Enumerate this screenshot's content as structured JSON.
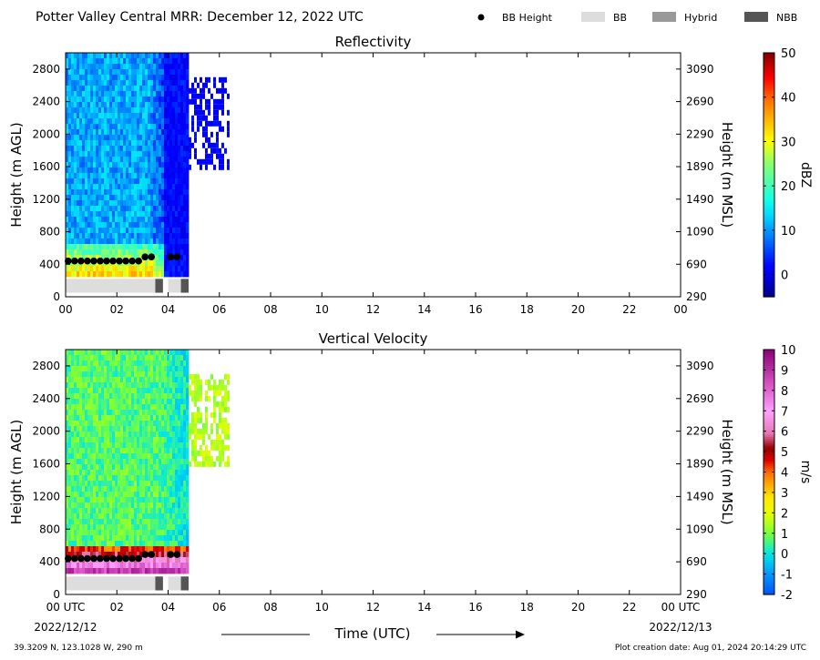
{
  "header": {
    "title": "Potter Valley Central MRR:  December 12, 2022 UTC",
    "legend": [
      {
        "label": "BB Height",
        "kind": "dot",
        "color": "#000000"
      },
      {
        "label": "BB",
        "kind": "swatch",
        "color": "#dddddd"
      },
      {
        "label": "Hybrid",
        "kind": "swatch",
        "color": "#999999"
      },
      {
        "label": "NBB",
        "kind": "swatch",
        "color": "#555555"
      }
    ]
  },
  "footer": {
    "location": "39.3209 N, 123.1028 W, 290 m",
    "creation": "Plot creation date: Aug 01, 2024 20:14:29 UTC",
    "date_start": "2022/12/12",
    "date_end": "2022/12/13",
    "time_label": "Time (UTC)"
  },
  "chart_data": [
    {
      "type": "heatmap",
      "title": "Reflectivity",
      "ylabel": "Height (m AGL)",
      "ylabel_right": "Height (m MSL)",
      "colorbar_label": "dBZ",
      "colorbar_ticks": [
        0,
        10,
        20,
        30,
        40,
        50
      ],
      "colorbar_range": [
        -5,
        50
      ],
      "colorscale": "jet",
      "x_ticks": [
        "00",
        "02",
        "04",
        "06",
        "08",
        "10",
        "12",
        "14",
        "16",
        "18",
        "20",
        "22",
        "00"
      ],
      "xlim": [
        0,
        24
      ],
      "ylim": [
        0,
        3000
      ],
      "y_ticks": [
        0,
        400,
        800,
        1200,
        1600,
        2000,
        2400,
        2800
      ],
      "y_ticks_right": [
        290,
        690,
        1090,
        1490,
        1890,
        2290,
        2690,
        3090
      ],
      "data_extent_hours": 4.8,
      "data_top_m": 3000,
      "bb_height": {
        "x": [
          0.1,
          0.35,
          0.6,
          0.85,
          1.1,
          1.35,
          1.6,
          1.85,
          2.1,
          2.35,
          2.6,
          2.85,
          3.1,
          3.35,
          4.1,
          4.35
        ],
        "y": [
          440,
          440,
          440,
          440,
          440,
          440,
          440,
          440,
          440,
          440,
          440,
          440,
          490,
          490,
          490,
          490
        ]
      },
      "bb_classes": [
        {
          "class": "BB",
          "start": 0.0,
          "end": 3.5
        },
        {
          "class": "NBB",
          "start": 3.5,
          "end": 3.8
        },
        {
          "class": "BB",
          "start": 4.0,
          "end": 4.5
        },
        {
          "class": "NBB",
          "start": 4.5,
          "end": 4.8
        }
      ]
    },
    {
      "type": "heatmap",
      "title": "Vertical Velocity",
      "ylabel": "Height (m AGL)",
      "ylabel_right": "Height (m MSL)",
      "colorbar_label": "m/s",
      "colorbar_ticks": [
        -2,
        -1,
        0,
        1,
        2,
        3,
        4,
        5,
        6,
        7,
        8,
        9,
        10
      ],
      "colorbar_range": [
        -2,
        10
      ],
      "colorscale": "velocity",
      "x_ticks": [
        "00 UTC",
        "02",
        "04",
        "06",
        "08",
        "10",
        "12",
        "14",
        "16",
        "18",
        "20",
        "22",
        "00 UTC"
      ],
      "xlim": [
        0,
        24
      ],
      "ylim": [
        0,
        3000
      ],
      "y_ticks": [
        0,
        400,
        800,
        1200,
        1600,
        2000,
        2400,
        2800
      ],
      "y_ticks_right": [
        290,
        690,
        1090,
        1490,
        1890,
        2290,
        2690,
        3090
      ],
      "data_extent_hours": 4.8,
      "data_top_m": 3000,
      "bb_height": {
        "x": [
          0.1,
          0.35,
          0.6,
          0.85,
          1.1,
          1.35,
          1.6,
          1.85,
          2.1,
          2.35,
          2.6,
          2.85,
          3.1,
          3.35,
          4.1,
          4.35
        ],
        "y": [
          440,
          440,
          440,
          440,
          440,
          440,
          440,
          440,
          440,
          440,
          440,
          440,
          490,
          490,
          490,
          490
        ]
      },
      "bb_classes": [
        {
          "class": "BB",
          "start": 0.0,
          "end": 3.5
        },
        {
          "class": "NBB",
          "start": 3.5,
          "end": 3.8
        },
        {
          "class": "BB",
          "start": 4.0,
          "end": 4.5
        },
        {
          "class": "NBB",
          "start": 4.5,
          "end": 4.8
        }
      ]
    }
  ]
}
